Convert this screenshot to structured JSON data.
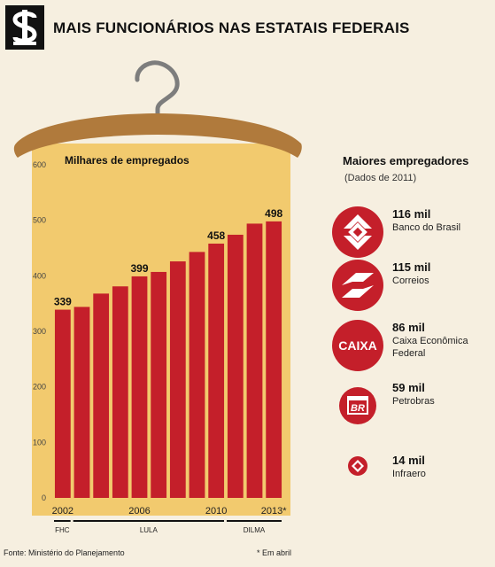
{
  "header": {
    "title": "MAIS FUNCIONÁRIOS NAS ESTATAIS FEDERAIS"
  },
  "colors": {
    "bar": "#c41f2a",
    "panel": "#f2ca6e",
    "hanger_wood": "#b07a3c",
    "hanger_hook": "#7d7d7d",
    "background": "#f6efe0",
    "icon_red": "#c41f2a"
  },
  "chart_data": {
    "type": "bar",
    "title": "Milhares de empregados",
    "xlabel": "",
    "ylabel": "",
    "ylim": [
      0,
      600
    ],
    "yticks": [
      0,
      100,
      200,
      300,
      400,
      500,
      600
    ],
    "categories": [
      "2002",
      "2003",
      "2004",
      "2005",
      "2006",
      "2007",
      "2008",
      "2009",
      "2010",
      "2011",
      "2012",
      "2013*"
    ],
    "values": [
      339,
      344,
      368,
      381,
      399,
      407,
      426,
      443,
      458,
      474,
      494,
      498
    ],
    "data_labels": [
      "339",
      "",
      "",
      "",
      "399",
      "",
      "",
      "",
      "458",
      "",
      "",
      "498"
    ],
    "x_tick_labels": [
      "2002",
      "",
      "",
      "",
      "2006",
      "",
      "",
      "",
      "2010",
      "",
      "",
      "2013*"
    ],
    "periods": [
      {
        "label": "FHC",
        "start": 0,
        "end": 0
      },
      {
        "label": "LULA",
        "start": 1,
        "end": 8
      },
      {
        "label": "DILMA",
        "start": 9,
        "end": 11
      }
    ],
    "grid": false,
    "legend": "none"
  },
  "employers": {
    "title": "Maiores empregadores",
    "subtitle": "(Dados de 2011)",
    "items": [
      {
        "value": "116 mil",
        "name": "Banco do Brasil",
        "icon": "banco-do-brasil-logo-icon"
      },
      {
        "value": "115 mil",
        "name": "Correios",
        "icon": "correios-logo-icon"
      },
      {
        "value": "86 mil",
        "name": "Caixa Econômica Federal",
        "icon": "caixa-logo-icon",
        "icon_text": "CAIXA"
      },
      {
        "value": "59 mil",
        "name": "Petrobras",
        "icon": "petrobras-logo-icon",
        "icon_text": "BR"
      },
      {
        "value": "14 mil",
        "name": "Infraero",
        "icon": "infraero-logo-icon"
      }
    ]
  },
  "footer": {
    "source": "Fonte: Ministério do Planejamento",
    "note": "* Em abril"
  }
}
